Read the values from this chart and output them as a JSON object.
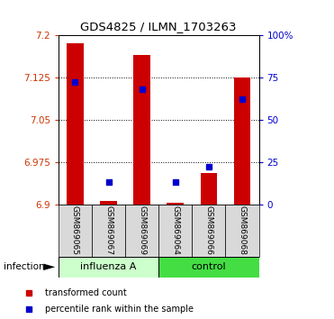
{
  "title": "GDS4825 / ILMN_1703263",
  "samples": [
    "GSM869065",
    "GSM869067",
    "GSM869069",
    "GSM869064",
    "GSM869066",
    "GSM869068"
  ],
  "group_labels": [
    "influenza A",
    "control"
  ],
  "red_values": [
    7.185,
    6.905,
    7.165,
    6.903,
    6.955,
    7.125
  ],
  "blue_values_raw": [
    72,
    13,
    68,
    13,
    22,
    62
  ],
  "y_min": 6.9,
  "y_max": 7.2,
  "y_ticks": [
    6.9,
    6.975,
    7.05,
    7.125,
    7.2
  ],
  "y_tick_labels": [
    "6.9",
    "6.975",
    "7.05",
    "7.125",
    "7.2"
  ],
  "right_y_ticks": [
    0,
    25,
    50,
    75,
    100
  ],
  "right_y_labels": [
    "0",
    "25",
    "50",
    "75",
    "100%"
  ],
  "left_color": "#cc3300",
  "right_color": "#0000cc",
  "bar_color": "#cc0000",
  "dot_color": "#0000cc",
  "bg_color": "#d9d9d9",
  "flu_color": "#ccffcc",
  "ctrl_color": "#44dd44",
  "infection_label": "infection",
  "legend_red": "transformed count",
  "legend_blue": "percentile rank within the sample"
}
